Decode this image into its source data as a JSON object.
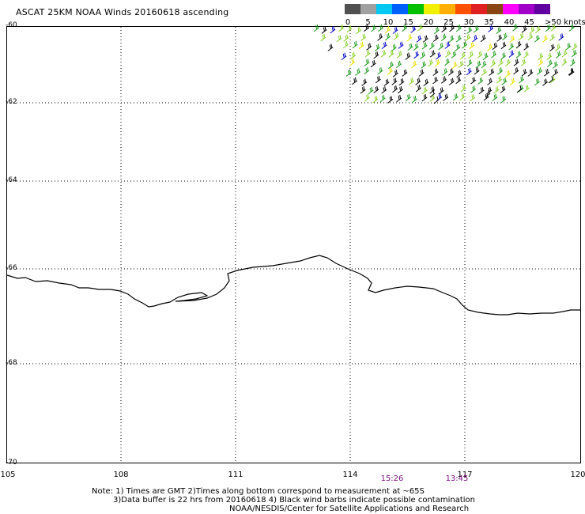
{
  "title": "ASCAT 25KM NOAA Winds 20160618 ascending",
  "colorbar": {
    "labels": [
      "0",
      "5",
      "10",
      "15",
      "20",
      "25",
      "30",
      "35",
      "40",
      "45",
      ">50 knots"
    ],
    "colors": [
      "#505050",
      "#a0a0a0",
      "#00c8f0",
      "#0060ff",
      "#00c000",
      "#f0f000",
      "#ffb000",
      "#ff5000",
      "#e02020",
      "#8b4513",
      "#ff00ff",
      "#a000c8",
      "#6000a0"
    ]
  },
  "map": {
    "lat_labels": [
      "-60",
      "-62",
      "-64",
      "-66",
      "-68",
      "-70"
    ],
    "lon_labels": [
      "105",
      "108",
      "111",
      "114",
      "117",
      "120"
    ],
    "time_labels": [
      "15:26",
      "13:45"
    ]
  },
  "notes": {
    "line1": "Note: 1) Times are GMT 2)Times along bottom correspond to measurement at ~65S",
    "line2": "3)Data buffer is 22 hrs from 20160618 4) Black wind barbs indicate possible contamination",
    "line3": "NOAA/NESDIS/Center for Satellite Applications and Research"
  }
}
